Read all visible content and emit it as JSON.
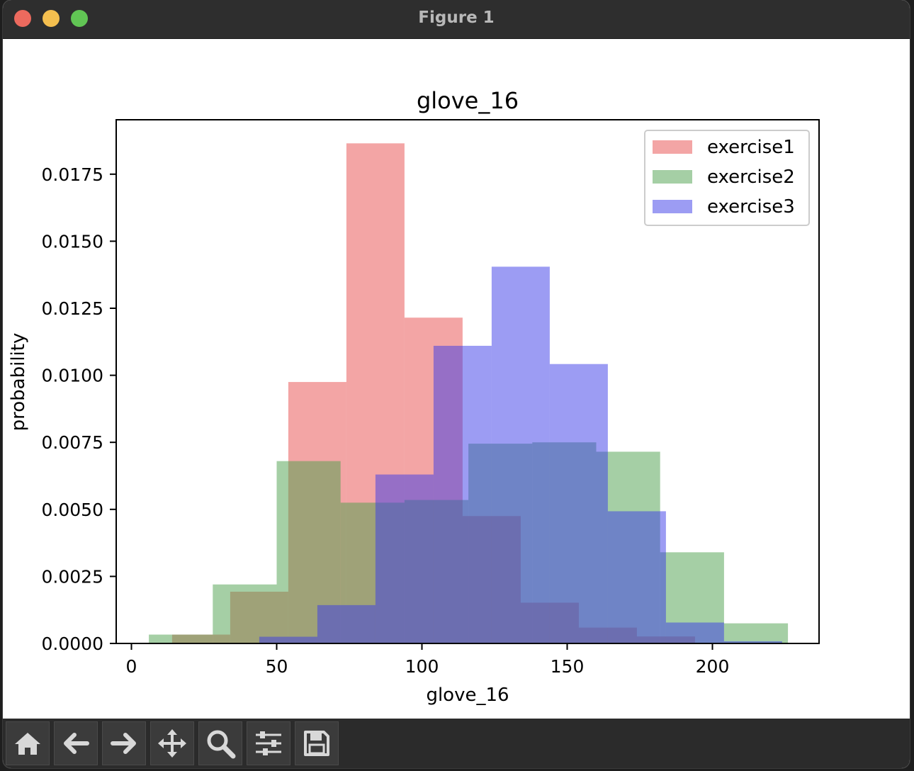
{
  "window": {
    "title": "Figure 1"
  },
  "chart_data": {
    "type": "bar",
    "title": "glove_16",
    "xlabel": "glove_16",
    "ylabel": "probability",
    "xlim": [
      -5,
      238
    ],
    "ylim": [
      0,
      0.0197
    ],
    "xticks": [
      0,
      50,
      100,
      150,
      200
    ],
    "yticks": [
      0.0,
      0.0025,
      0.005,
      0.0075,
      0.01,
      0.0125,
      0.015,
      0.0175
    ],
    "ytick_labels": [
      "0.0000",
      "0.0025",
      "0.0050",
      "0.0075",
      "0.0100",
      "0.0125",
      "0.0150",
      "0.0175"
    ],
    "legend_position": "top-right",
    "grid": false,
    "series": [
      {
        "name": "exercise1",
        "color": "#e74c4c",
        "edges": [
          14,
          34,
          54,
          74,
          94,
          114,
          134,
          154,
          174,
          194
        ],
        "values": [
          0.00033,
          0.00193,
          0.00975,
          0.01865,
          0.01215,
          0.00475,
          0.00152,
          0.00059,
          0.00026
        ]
      },
      {
        "name": "exercise2",
        "color": "#4ca04c",
        "edges": [
          6,
          28,
          50,
          72,
          94,
          116,
          138,
          160,
          182,
          204,
          226
        ],
        "values": [
          0.00033,
          0.0022,
          0.0068,
          0.00525,
          0.00535,
          0.00745,
          0.0075,
          0.00715,
          0.0034,
          0.00075
        ]
      },
      {
        "name": "exercise3",
        "color": "#3a3ae8",
        "edges": [
          44,
          64,
          84,
          104,
          124,
          144,
          164,
          184,
          204,
          224
        ],
        "values": [
          0.00025,
          0.00143,
          0.0063,
          0.0111,
          0.01405,
          0.01042,
          0.00493,
          0.00078,
          8e-05
        ]
      }
    ]
  },
  "toolbar": {
    "buttons": [
      "home-icon",
      "back-icon",
      "forward-icon",
      "pan-icon",
      "zoom-icon",
      "configure-icon",
      "save-icon"
    ]
  }
}
